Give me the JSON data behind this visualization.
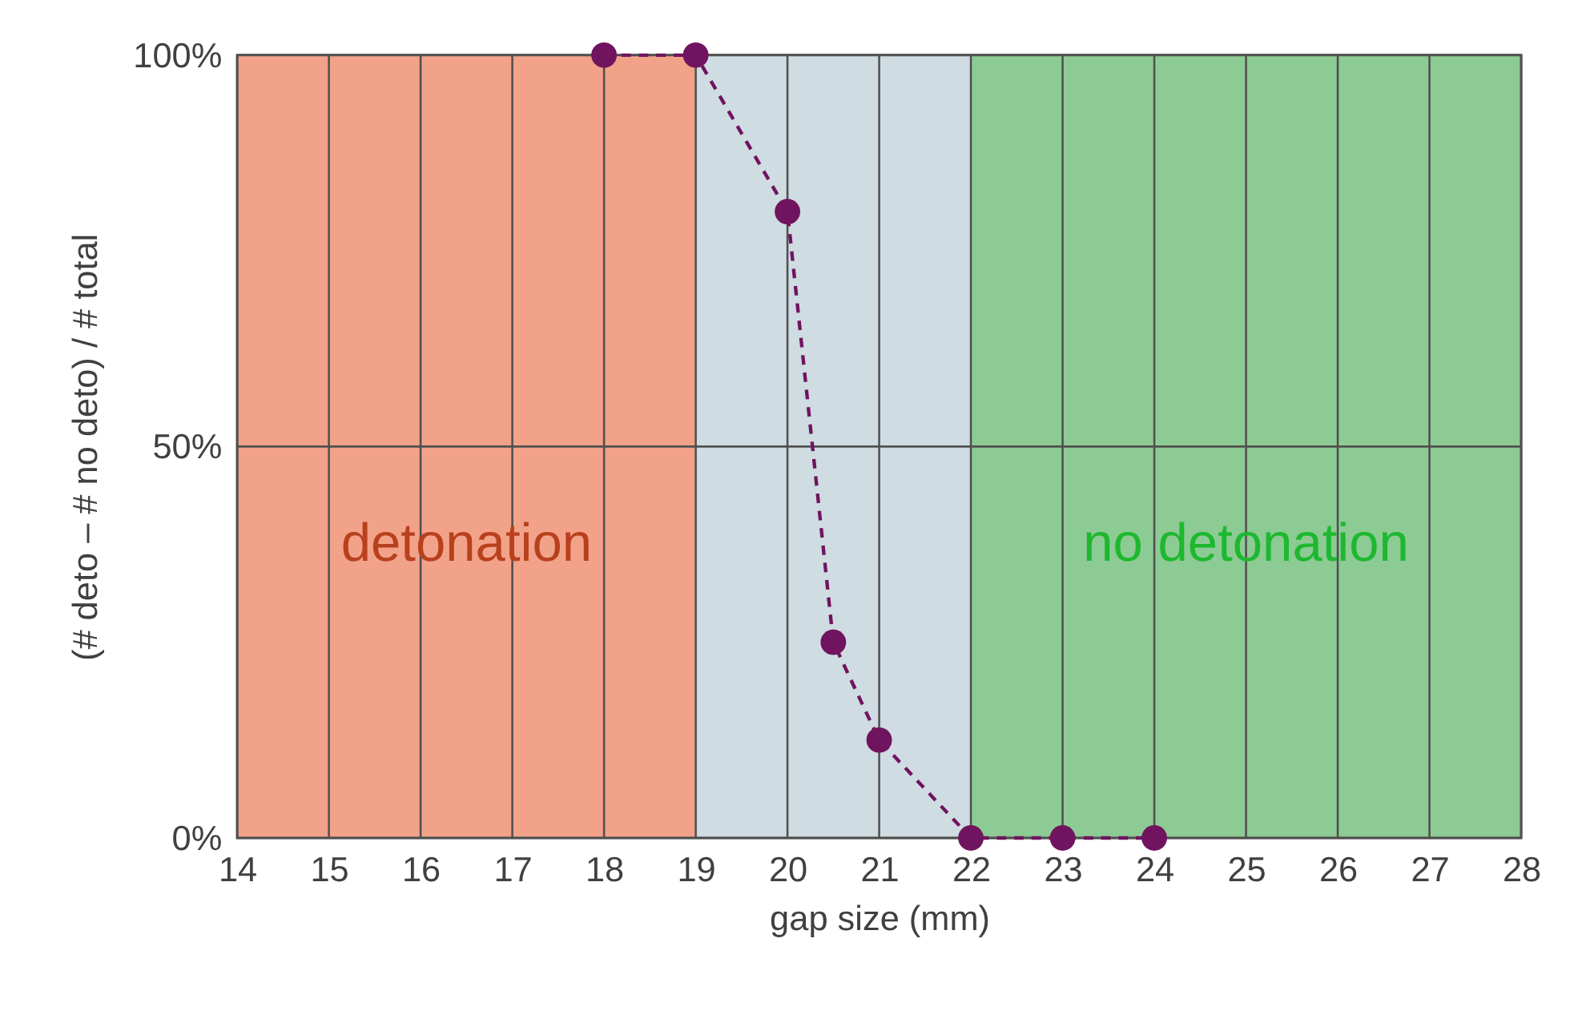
{
  "chart_data": {
    "type": "line",
    "xlabel": "gap size (mm)",
    "ylabel": "(# deto – # no deto) / # total",
    "x": [
      18,
      19,
      20,
      20.5,
      21,
      22,
      23,
      24
    ],
    "series": [
      {
        "color": "#70145f",
        "values": [
          100,
          100,
          80,
          25,
          12.5,
          0,
          0,
          0
        ]
      }
    ],
    "xlim": [
      14,
      28
    ],
    "xticks": [
      14,
      15,
      16,
      17,
      18,
      19,
      20,
      21,
      22,
      23,
      24,
      25,
      26,
      27,
      28
    ],
    "ylim": [
      0,
      100
    ],
    "yticks": [
      {
        "value": 0,
        "label": "0%"
      },
      {
        "value": 50,
        "label": "50%"
      },
      {
        "value": 100,
        "label": "100%"
      }
    ],
    "bands": [
      {
        "axis": "x",
        "from": 14,
        "to": 19,
        "label": "detonation",
        "color": "#f3a28a"
      },
      {
        "axis": "x",
        "from": 19,
        "to": 22,
        "color": "#cfdce2"
      },
      {
        "axis": "x",
        "from": 22,
        "to": 28,
        "label": "no detonation",
        "color": "#8dcb94"
      }
    ],
    "grid": true,
    "marker": "circle",
    "line_style": "dashed"
  }
}
